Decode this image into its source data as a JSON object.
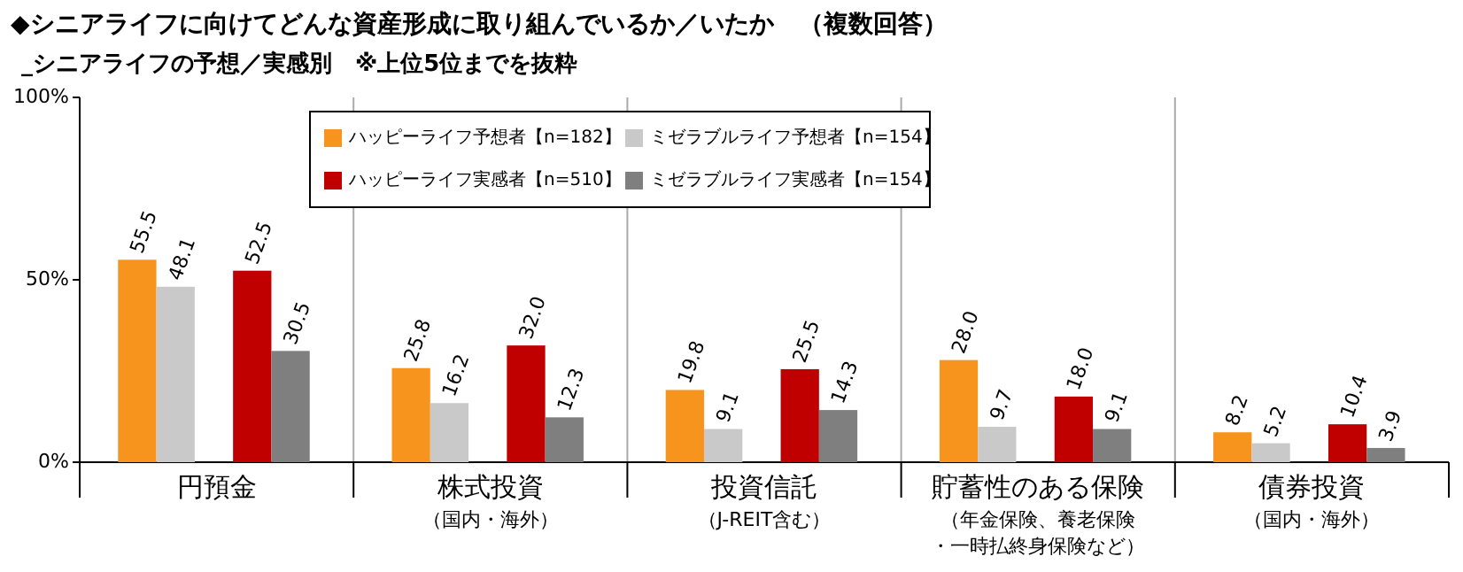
{
  "chart_data": {
    "type": "bar",
    "title": "◆シニアライフに向けてどんな資産形成に取り組んでいるか／いたか　（複数回答）",
    "subtitle": "_シニアライフの予想／実感別　※上位5位までを抜粋",
    "categories": [
      "円預金",
      "株式投資（国内・海外）",
      "投資信託（J-REIT含む）",
      "貯蓄性のある保険（年金保険、養老保険・一時払終身保険など）",
      "債券投資（国内・海外）"
    ],
    "series": [
      {
        "name": "ハッピーライフ予想者【n=182】",
        "color": "#f7941d",
        "values": [
          55.5,
          25.8,
          19.8,
          28.0,
          8.2
        ],
        "value_labels": [
          "55.5",
          "25.8",
          "19.8",
          "28.0",
          "8.2"
        ]
      },
      {
        "name": "ミゼラブルライフ予想者【n=154】",
        "color": "#c9c9c9",
        "values": [
          48.1,
          16.2,
          9.1,
          9.7,
          5.2
        ],
        "value_labels": [
          "48.1",
          "16.2",
          "9.1",
          "9.7",
          "5.2"
        ]
      },
      {
        "name": "ハッピーライフ実感者【n=510】",
        "color": "#c00000",
        "values": [
          52.5,
          32.0,
          25.5,
          18.0,
          10.4
        ],
        "value_labels": [
          "52.5",
          "32.0",
          "25.5",
          "18.0",
          "10.4"
        ]
      },
      {
        "name": "ミゼラブルライフ実感者【n=154】",
        "color": "#7f7f7f",
        "values": [
          30.5,
          12.3,
          14.3,
          9.1,
          3.9
        ],
        "value_labels": [
          "30.5",
          "12.3",
          "14.3",
          "9.1",
          "3.9"
        ]
      }
    ],
    "ylim": [
      0,
      100
    ],
    "yticks": [
      {
        "value": 0,
        "label": "0%"
      },
      {
        "value": 50,
        "label": "50%"
      },
      {
        "value": 100,
        "label": "100%"
      }
    ],
    "grid": false,
    "legend": "top"
  }
}
